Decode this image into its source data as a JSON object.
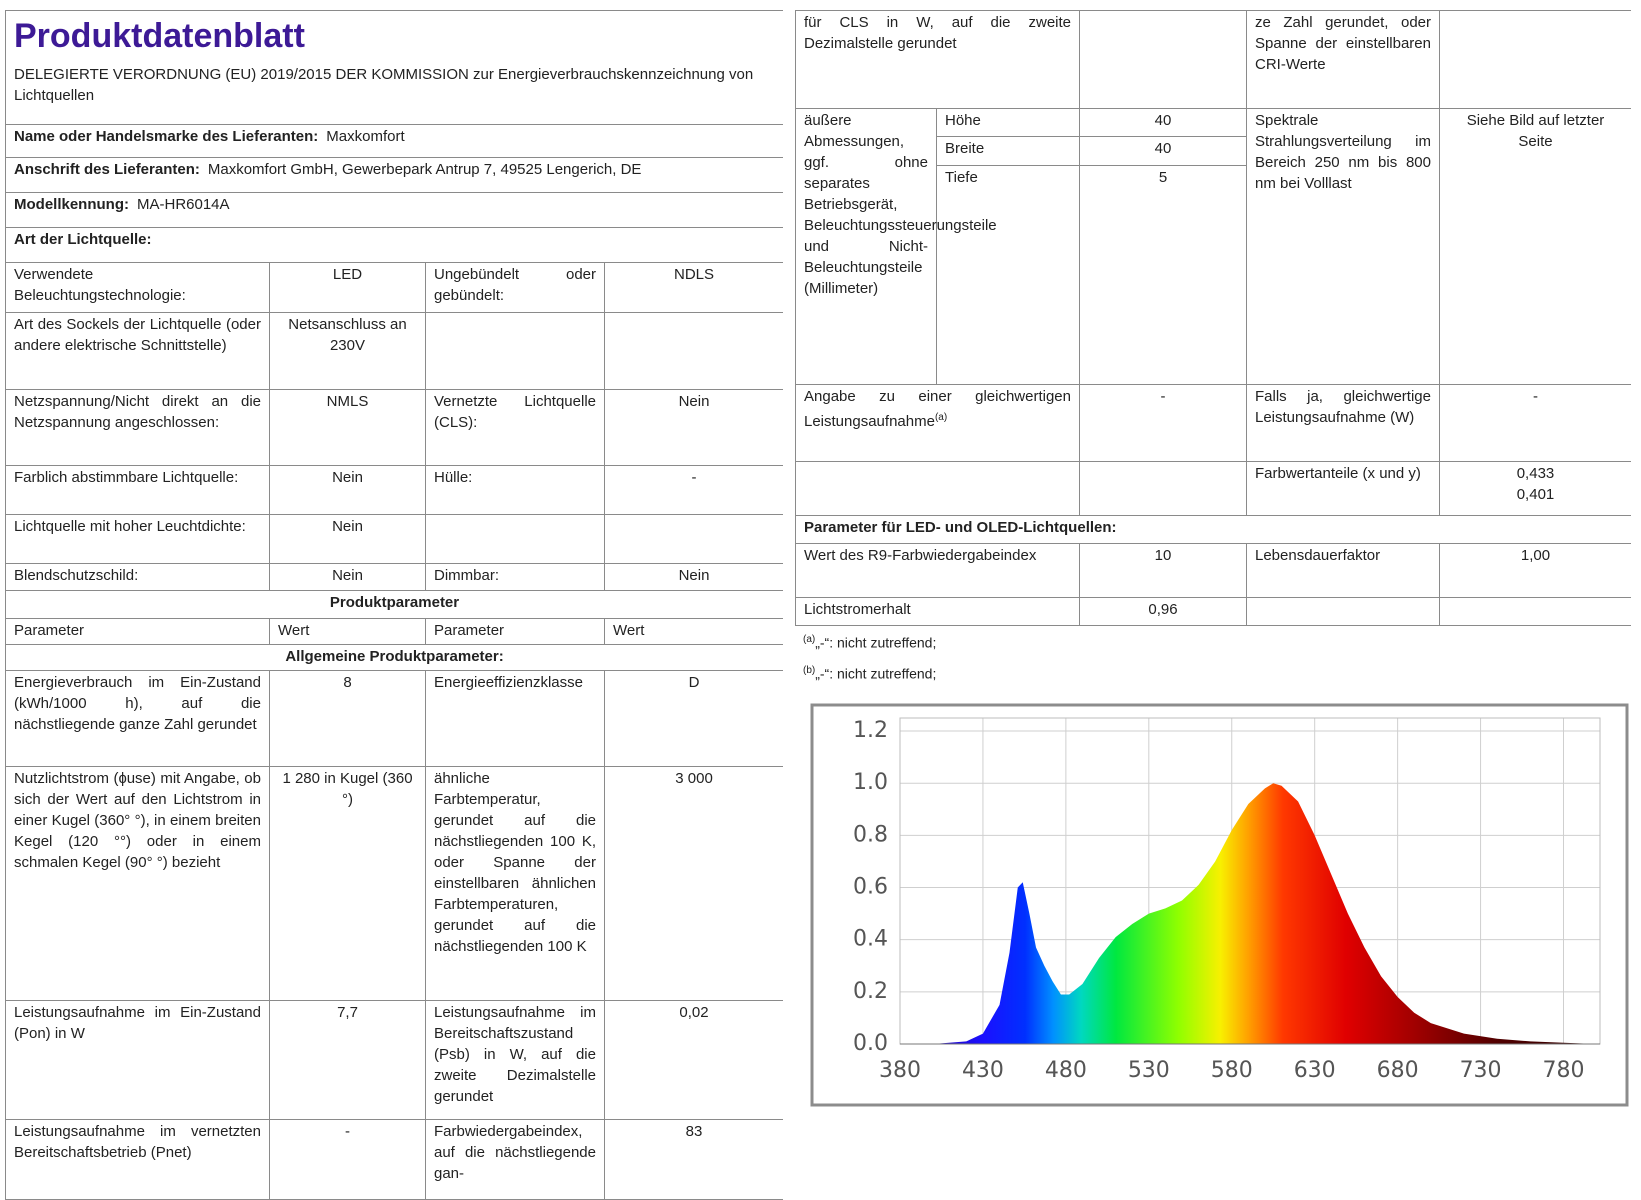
{
  "header": {
    "title": "Produktdatenblatt",
    "subtitle": "DELEGIERTE VERORDNUNG (EU) 2019/2015 DER KOMMISSION zur Energieverbrauchskennzeichnung von Lichtquellen"
  },
  "supplier": [
    {
      "label": "Name oder Handelsmarke des Lieferanten:",
      "value": "Maxkomfort"
    },
    {
      "label": "Anschrift des Lieferanten:",
      "value": "Maxkomfort GmbH, Gewerbepark Antrup 7, 49525 Lengerich, DE"
    },
    {
      "label": "Modellkennung:",
      "value": "MA-HR6014A"
    }
  ],
  "light_source": {
    "title": "Art der Lichtquelle:",
    "rows": [
      [
        "Verwendete Beleuchtungstechnologie:",
        "LED",
        "Ungebündelt oder gebündelt:",
        "NDLS"
      ],
      [
        "Art des Sockels der Lichtquelle (oder andere elektrische Schnittstelle)",
        "Netsanschluss an 230V",
        null,
        null
      ],
      [
        "Netzspannung/Nicht direkt an die Netzspannung angeschlossen:",
        "NMLS",
        "Vernetzte Lichtquelle (CLS):",
        "Nein"
      ],
      [
        "Farblich abstimmbare Lichtquelle:",
        "Nein",
        "Hülle:",
        "-"
      ],
      [
        "Lichtquelle mit hoher Leuchtdichte:",
        "Nein",
        null,
        null
      ],
      [
        "Blendschutzschild:",
        "Nein",
        "Dimmbar:",
        "Nein"
      ]
    ]
  },
  "product_parameters": {
    "title": "Produktparameter",
    "columns": [
      "Parameter",
      "Wert",
      "Parameter",
      "Wert"
    ],
    "section": "Allgemeine Produktparameter:",
    "rows": [
      [
        "Energieverbrauch im Ein-Zustand (kWh/1000 h), auf die nächstliegende ganze Zahl gerundet",
        "8",
        "Energieeffizienzklasse",
        "D"
      ],
      [
        "Nutzlichtstrom (ɸuse) mit Angabe, ob sich der Wert auf den Lichtstrom in einer Kugel (360° °), in einem breiten Kegel (120 °°) oder in einem schmalen Kegel (90° °) bezieht",
        "1 280 in Kugel (360 °)",
        "ähnliche Farbtemperatur, gerundet auf die nächstliegenden 100 K, oder Spanne der einstellbaren ähnlichen Farbtemperaturen, gerundet auf die nächstliegenden 100 K",
        "3 000"
      ],
      [
        "Leistungsaufnahme im Ein-Zustand (Pon) in W",
        "7,7",
        "Leistungsaufnahme im Bereitschaftszustand (Psb) in W, auf die zweite Dezimalstelle gerundet",
        "0,02"
      ],
      [
        "Leistungsaufnahme im vernetzten Bereitschaftsbetrieb (Pnet)",
        "-",
        "Farbwiedergabeindex, auf die nächstliegende gan-",
        "83"
      ]
    ]
  },
  "continuation": [
    "für CLS in W, auf die zweite Dezimalstelle gerundet",
    null,
    "ze Zahl gerundet, oder Spanne der einstellbaren CRI-Werte",
    null
  ],
  "dimensions": {
    "label": "äußere Abmessungen, ggf. ohne separates Betriebsgerät, Beleuchtungssteuerungsteile und Nicht-Beleuchtungsteile (Millimeter)",
    "items": [
      {
        "name": "Höhe",
        "value": "40"
      },
      {
        "name": "Breite",
        "value": "40"
      },
      {
        "name": "Tiefe",
        "value": "5"
      }
    ],
    "spectral_label": "Spektrale Strahlungsverteilung im Bereich 250 nm bis 800 nm bei Volllast",
    "spectral_value": "Siehe Bild auf letzter Seite"
  },
  "more_parameters": {
    "note": "(a)",
    "rows": [
      [
        "Angabe zu einer gleichwertigen Leistungsaufnahme",
        "-",
        "Falls ja, gleichwertige Leistungsaufnahme (W)",
        "-"
      ],
      [
        null,
        null,
        "Farbwertanteile (x und y)",
        [
          "0,433",
          "0,401"
        ]
      ]
    ]
  },
  "led_parameters": {
    "title": "Parameter für LED- und OLED-Lichtquellen:",
    "rows": [
      [
        "Wert des R9-Farbwiedergabeindex",
        "10",
        "Lebensdauerfaktor",
        "1,00"
      ],
      [
        "Lichtstromerhalt",
        "0,96",
        null,
        null
      ]
    ]
  },
  "footnotes": [
    {
      "mark": "(a)",
      "text": "„-“: nicht zutreffend;"
    },
    {
      "mark": "(b)",
      "text": "„-“: nicht zutreffend;"
    }
  ],
  "spectrum": {
    "type": "area",
    "x": [
      380,
      400,
      420,
      430,
      440,
      446,
      451,
      454,
      458,
      462,
      467,
      472,
      477,
      482,
      490,
      500,
      510,
      520,
      530,
      540,
      550,
      560,
      570,
      580,
      590,
      600,
      605,
      610,
      620,
      630,
      640,
      650,
      660,
      670,
      680,
      690,
      700,
      720,
      740,
      760,
      780,
      800
    ],
    "values": [
      0,
      0,
      0.01,
      0.04,
      0.15,
      0.35,
      0.6,
      0.62,
      0.5,
      0.37,
      0.3,
      0.24,
      0.19,
      0.19,
      0.23,
      0.33,
      0.41,
      0.46,
      0.5,
      0.52,
      0.55,
      0.61,
      0.7,
      0.82,
      0.92,
      0.98,
      1.0,
      0.99,
      0.93,
      0.8,
      0.65,
      0.5,
      0.37,
      0.26,
      0.18,
      0.12,
      0.08,
      0.04,
      0.02,
      0.01,
      0.005,
      0
    ],
    "xlim": [
      380,
      802
    ],
    "ylim": [
      0,
      1.25
    ],
    "xticks": [
      380,
      430,
      480,
      530,
      580,
      630,
      680,
      730,
      780
    ],
    "yticks": [
      {
        "value": 0,
        "label": "0.0"
      },
      0.2,
      0.4,
      0.6,
      0.8,
      {
        "value": 1,
        "label": "1.0"
      },
      1.2
    ],
    "grid": true
  }
}
